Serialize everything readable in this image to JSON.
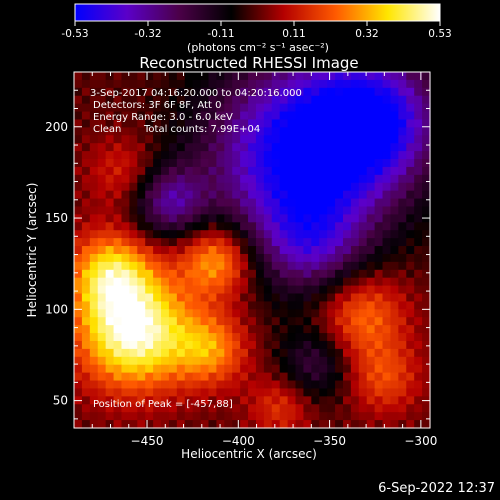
{
  "colorbar": {
    "ticks": [
      "-0.53",
      "-0.32",
      "-0.11",
      "0.11",
      "0.32",
      "0.53"
    ],
    "units_label": "(photons cm⁻² s⁻¹ asec⁻²)",
    "colors": [
      "#0000ff",
      "#5b00c8",
      "#4b0048",
      "#000000",
      "#b40000",
      "#ff5a00",
      "#ffe600",
      "#ffffff"
    ]
  },
  "info": {
    "time_range": "3-Sep-2017 04:16:20.000 to 04:20:16.000",
    "detectors": "Detectors: 3F 6F 8F, Att 0",
    "energy_range": "Energy Range: 3.0 - 6.0 keV",
    "algorithm": "Clean",
    "total_counts": "Total counts: 7.99E+04",
    "peak": "Position of Peak = [-457,88]"
  },
  "footer": {
    "timestamp": "6-Sep-2022 12:37"
  },
  "chart_data": {
    "type": "heatmap",
    "title": "Reconstructed RHESSI Image",
    "xlabel": "Heliocentric X (arcsec)",
    "ylabel": "Heliocentric Y (arcsec)",
    "xlim": [
      -490,
      -295
    ],
    "ylim": [
      35,
      230
    ],
    "x_ticks": [
      -450,
      -400,
      -350,
      -300
    ],
    "y_ticks": [
      50,
      100,
      150,
      200
    ],
    "colorbar_range": [
      -0.53,
      0.53
    ],
    "blobs": [
      {
        "x": -457,
        "y": 88,
        "value": 0.53,
        "sigma": 22
      },
      {
        "x": -470,
        "y": 120,
        "value": 0.34,
        "sigma": 16
      },
      {
        "x": -412,
        "y": 127,
        "value": 0.33,
        "sigma": 14
      },
      {
        "x": -415,
        "y": 78,
        "value": 0.26,
        "sigma": 14
      },
      {
        "x": -332,
        "y": 97,
        "value": 0.25,
        "sigma": 17
      },
      {
        "x": -320,
        "y": 62,
        "value": 0.18,
        "sigma": 14
      },
      {
        "x": -377,
        "y": 47,
        "value": 0.16,
        "sigma": 12
      },
      {
        "x": -463,
        "y": 175,
        "value": 0.14,
        "sigma": 14
      },
      {
        "x": -365,
        "y": 185,
        "value": -0.55,
        "sigma": 36
      },
      {
        "x": -325,
        "y": 205,
        "value": -0.4,
        "sigma": 25
      },
      {
        "x": -438,
        "y": 159,
        "value": -0.3,
        "sigma": 14
      },
      {
        "x": -360,
        "y": 135,
        "value": -0.24,
        "sigma": 20
      },
      {
        "x": -358,
        "y": 70,
        "value": -0.2,
        "sigma": 14
      }
    ]
  }
}
